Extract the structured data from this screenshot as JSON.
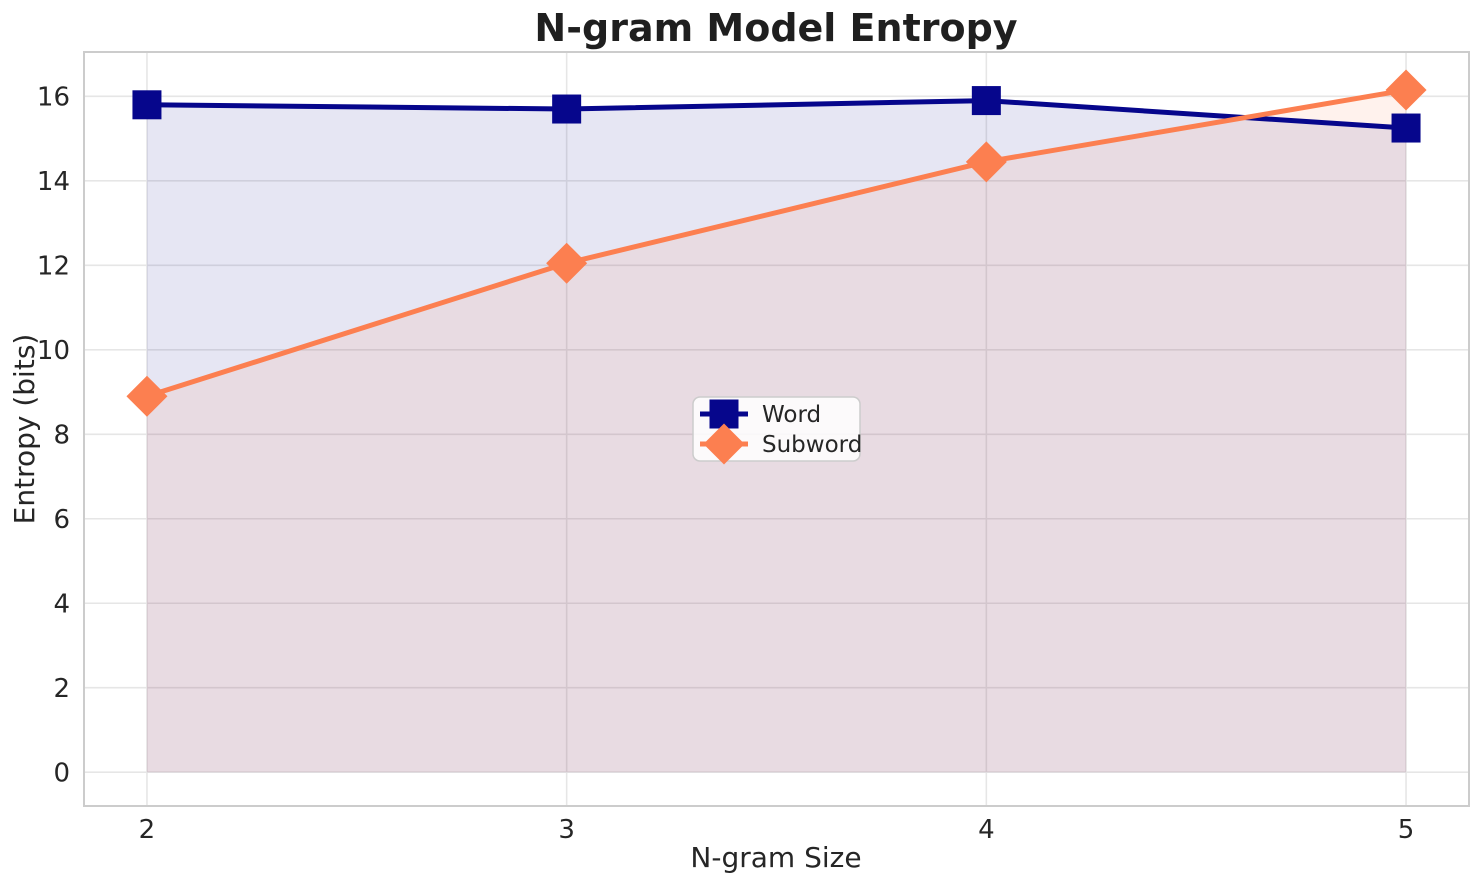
{
  "chart_data": {
    "type": "line",
    "title": "N-gram Model Entropy",
    "xlabel": "N-gram Size",
    "ylabel": "Entropy (bits)",
    "x": [
      2,
      3,
      4,
      5
    ],
    "series": [
      {
        "name": "Word",
        "marker": "square",
        "color": "#06068c",
        "values": [
          15.8,
          15.7,
          15.9,
          15.25
        ]
      },
      {
        "name": "Subword",
        "marker": "diamond",
        "color": "#fc7f50",
        "values": [
          8.9,
          12.05,
          14.45,
          16.15
        ]
      }
    ],
    "area_fill": true,
    "area_baseline": 0,
    "fill_alpha": 0.1,
    "xtick_labels": [
      "2",
      "3",
      "4",
      "5"
    ],
    "xtick_values": [
      2,
      3,
      4,
      5
    ],
    "ytick_labels": [
      "0",
      "2",
      "4",
      "6",
      "8",
      "10",
      "12",
      "14",
      "16"
    ],
    "ytick_values": [
      0,
      2,
      4,
      6,
      8,
      10,
      12,
      14,
      16
    ],
    "xlim": [
      1.85,
      5.15
    ],
    "ylim": [
      -0.8,
      17.05
    ],
    "grid": true,
    "legend": {
      "entries": [
        "Word",
        "Subword"
      ],
      "position": "center"
    },
    "colors": {
      "background": "#ffffff",
      "grid": "#e6e6e6",
      "spine": "#cccccc",
      "tick_text": "#262626",
      "label_text": "#262626",
      "title_text": "#1f1f1f",
      "legend_bg": "rgba(255,255,255,0.85)",
      "legend_border": "#cccccc"
    }
  }
}
